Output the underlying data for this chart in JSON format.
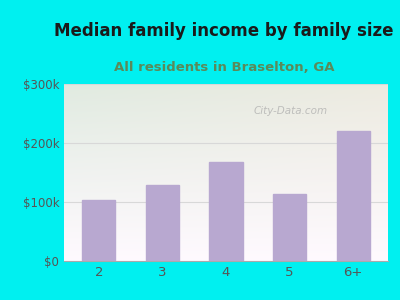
{
  "title": "Median family income by family size",
  "subtitle": "All residents in Braselton, GA",
  "categories": [
    "2",
    "3",
    "4",
    "5",
    "6+"
  ],
  "values": [
    103000,
    128000,
    168000,
    113000,
    220000
  ],
  "bar_color": "#b8a8d0",
  "title_fontsize": 12,
  "subtitle_fontsize": 9.5,
  "subtitle_color": "#5a8a5a",
  "title_color": "#1a1a1a",
  "ylim": [
    0,
    300000
  ],
  "yticks": [
    0,
    100000,
    200000,
    300000
  ],
  "ytick_labels": [
    "$0",
    "$100k",
    "$200k",
    "$300k"
  ],
  "background_outer": "#00f0f0",
  "plot_bg_top_left": "#d0ecd8",
  "plot_bg_top_right": "#f0f8f0",
  "plot_bg_bottom": "#f8fff8",
  "watermark": "City-Data.com",
  "tick_color": "#555555",
  "grid_color": "#d8d8d8"
}
